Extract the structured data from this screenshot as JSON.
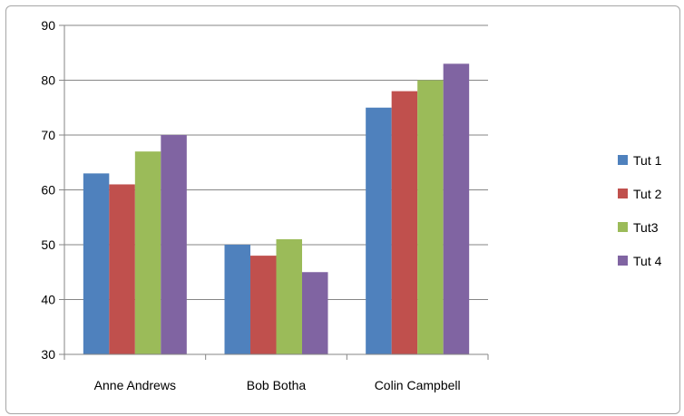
{
  "chart_data": {
    "type": "bar",
    "categories": [
      "Anne Andrews",
      "Bob Botha",
      "Colin Campbell"
    ],
    "series": [
      {
        "name": "Tut 1",
        "color": "#4f81bd",
        "values": [
          63,
          50,
          75
        ]
      },
      {
        "name": "Tut 2",
        "color": "#c0504d",
        "values": [
          61,
          48,
          78
        ]
      },
      {
        "name": "Tut3",
        "color": "#9bbb59",
        "values": [
          67,
          51,
          80
        ]
      },
      {
        "name": "Tut 4",
        "color": "#8064a2",
        "values": [
          70,
          45,
          83
        ]
      }
    ],
    "ylim": [
      30,
      90
    ],
    "yticks": [
      30,
      40,
      50,
      60,
      70,
      80,
      90
    ],
    "ytick_labels": [
      "30",
      "40",
      "50",
      "60",
      "70",
      "80",
      "90"
    ],
    "grid": true,
    "legend_position": "right",
    "title": "",
    "xlabel": "",
    "ylabel": ""
  }
}
